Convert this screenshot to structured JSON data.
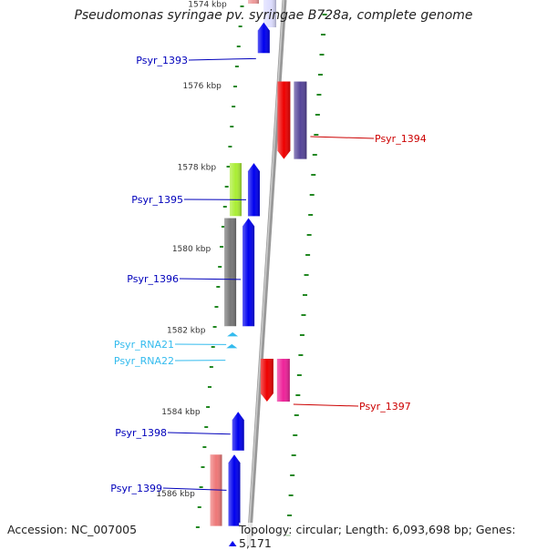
{
  "title": "Pseudomonas syringae pv. syringae B728a, complete genome",
  "accession": "Accession: NC_007005",
  "summary": "Topology: circular; Length: 6,093,698 bp; Genes: 5,171",
  "colors": {
    "forward_gene": "#0000ee",
    "reverse_gene": "#ee0000",
    "rna": "#33bbee",
    "scale_ticks": "#228822",
    "backbone": "#888888"
  },
  "scale_labels": [
    {
      "bp": 1574000,
      "text": "1574 kbp"
    },
    {
      "bp": 1576000,
      "text": "1576 kbp"
    },
    {
      "bp": 1578000,
      "text": "1578 kbp"
    },
    {
      "bp": 1580000,
      "text": "1580 kbp"
    },
    {
      "bp": 1582000,
      "text": "1582 kbp"
    },
    {
      "bp": 1584000,
      "text": "1584 kbp"
    },
    {
      "bp": 1586000,
      "text": "1586 kbp"
    }
  ],
  "features": [
    {
      "name": "Psyr_1393",
      "strand": "+",
      "start": 1574450,
      "end": 1575200,
      "color": "#0000ee",
      "labeled": true
    },
    {
      "name": "Psyr_1394",
      "strand": "-",
      "start": 1575900,
      "end": 1577800,
      "color": "#ee0000",
      "labeled": true
    },
    {
      "name": "Psyr_1394_paired",
      "strand": "-",
      "start": 1575900,
      "end": 1577800,
      "color": "#554499",
      "labeled": false
    },
    {
      "name": "Psyr_1395",
      "strand": "+",
      "start": 1577900,
      "end": 1579200,
      "color": "#0000ee",
      "labeled": true
    },
    {
      "name": "Psyr_1395_paired",
      "strand": "+",
      "start": 1577900,
      "end": 1579200,
      "color": "#aaee33",
      "labeled": false
    },
    {
      "name": "Psyr_1396",
      "strand": "+",
      "start": 1579250,
      "end": 1581900,
      "color": "#0000ee",
      "labeled": true
    },
    {
      "name": "Psyr_1396_paired",
      "strand": "+",
      "start": 1579250,
      "end": 1581900,
      "color": "#777777",
      "labeled": false
    },
    {
      "name": "Psyr_RNA21",
      "strand": "+",
      "start": 1582050,
      "end": 1582150,
      "color": "#33bbee",
      "labeled": true
    },
    {
      "name": "Psyr_RNA22",
      "strand": "+",
      "start": 1582340,
      "end": 1582440,
      "color": "#33bbee",
      "labeled": true
    },
    {
      "name": "Psyr_1397",
      "strand": "-",
      "start": 1582700,
      "end": 1583750,
      "color": "#ee0000",
      "labeled": true
    },
    {
      "name": "Psyr_1397_paired",
      "strand": "-",
      "start": 1582700,
      "end": 1583750,
      "color": "#ee2299",
      "labeled": false
    },
    {
      "name": "Psyr_1398",
      "strand": "+",
      "start": 1584000,
      "end": 1584950,
      "color": "#0000ee",
      "labeled": true
    },
    {
      "name": "Psyr_1399",
      "strand": "+",
      "start": 1585050,
      "end": 1586800,
      "color": "#0000ee",
      "labeled": true
    },
    {
      "name": "Psyr_1399_paired",
      "strand": "+",
      "start": 1585050,
      "end": 1586800,
      "color": "#ee7777",
      "labeled": false
    }
  ]
}
